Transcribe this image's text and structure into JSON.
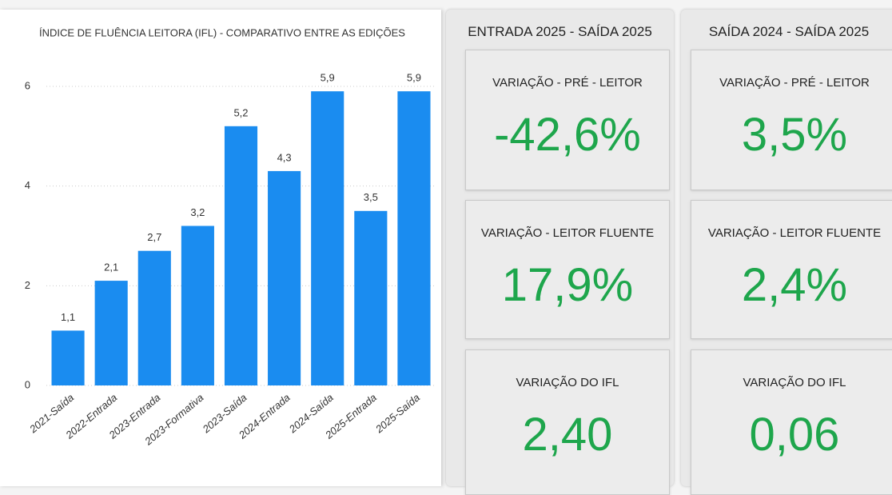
{
  "chart_data": {
    "type": "bar",
    "title": "ÍNDICE DE FLUÊNCIA LEITORA (IFL) - COMPARATIVO ENTRE AS EDIÇÕES",
    "categories": [
      "2021-Saída",
      "2022-Entrada",
      "2023-Entrada",
      "2023-Formativa",
      "2023-Saída",
      "2024-Entrada",
      "2024-Saída",
      "2025-Entrada",
      "2025-Saída"
    ],
    "values": [
      1.1,
      2.1,
      2.7,
      3.2,
      5.2,
      4.3,
      5.9,
      3.5,
      5.9
    ],
    "value_labels": [
      "1,1",
      "2,1",
      "2,7",
      "3,2",
      "5,2",
      "4,3",
      "5,9",
      "3,5",
      "5,9"
    ],
    "color": "#1a8cf0",
    "ylim": [
      0,
      6.4
    ],
    "yticks": [
      0,
      2,
      4,
      6
    ],
    "grid": true
  },
  "panels": [
    {
      "title": "ENTRADA 2025 - SAÍDA 2025",
      "cards": [
        {
          "label": "VARIAÇÃO - PRÉ - LEITOR",
          "value": "-42,6%"
        },
        {
          "label": "VARIAÇÃO - LEITOR FLUENTE",
          "value": "17,9%"
        },
        {
          "label": "VARIAÇÃO DO IFL",
          "value": "2,40"
        }
      ]
    },
    {
      "title": "SAÍDA 2024 - SAÍDA 2025",
      "cards": [
        {
          "label": "VARIAÇÃO - PRÉ - LEITOR",
          "value": "3,5%"
        },
        {
          "label": "VARIAÇÃO - LEITOR FLUENTE",
          "value": "2,4%"
        },
        {
          "label": "VARIAÇÃO DO IFL",
          "value": "0,06"
        }
      ]
    }
  ]
}
